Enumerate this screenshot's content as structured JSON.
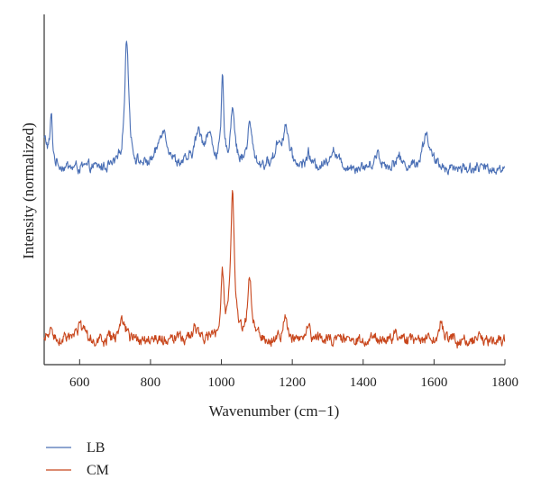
{
  "chart_data": {
    "type": "line",
    "title": "",
    "xlabel": "Wavenumber (cm−1)",
    "ylabel": "Intensity (normalized)",
    "xlim": [
      500,
      1800
    ],
    "ylim": [
      0,
      1
    ],
    "x_ticks": [
      600,
      800,
      1000,
      1200,
      1400,
      1600,
      1800
    ],
    "x_tick_labels": [
      "600",
      "800",
      "1000",
      "1200",
      "1400",
      "1600",
      "1800"
    ],
    "grid": false,
    "legend_position": "bottom-left",
    "series": [
      {
        "name": "LB",
        "color": "#4a6fb5",
        "baseline": 0.56,
        "noise": 0.012,
        "peaks": [
          {
            "x": 500,
            "y": 0.08,
            "w": 12
          },
          {
            "x": 520,
            "y": 0.13,
            "w": 4
          },
          {
            "x": 733,
            "y": 0.37,
            "w": 7
          },
          {
            "x": 835,
            "y": 0.11,
            "w": 16
          },
          {
            "x": 935,
            "y": 0.09,
            "w": 14
          },
          {
            "x": 965,
            "y": 0.08,
            "w": 12
          },
          {
            "x": 1003,
            "y": 0.24,
            "w": 4
          },
          {
            "x": 1032,
            "y": 0.17,
            "w": 7
          },
          {
            "x": 1080,
            "y": 0.12,
            "w": 8
          },
          {
            "x": 1160,
            "y": 0.06,
            "w": 10
          },
          {
            "x": 1182,
            "y": 0.11,
            "w": 10
          },
          {
            "x": 1245,
            "y": 0.04,
            "w": 6
          },
          {
            "x": 1315,
            "y": 0.05,
            "w": 14
          },
          {
            "x": 1440,
            "y": 0.04,
            "w": 10
          },
          {
            "x": 1500,
            "y": 0.03,
            "w": 10
          },
          {
            "x": 1578,
            "y": 0.1,
            "w": 12
          }
        ]
      },
      {
        "name": "CM",
        "color": "#c8461c",
        "baseline": 0.07,
        "noise": 0.013,
        "peaks": [
          {
            "x": 520,
            "y": 0.03,
            "w": 6
          },
          {
            "x": 600,
            "y": 0.04,
            "w": 10
          },
          {
            "x": 720,
            "y": 0.05,
            "w": 10
          },
          {
            "x": 925,
            "y": 0.04,
            "w": 8
          },
          {
            "x": 1003,
            "y": 0.19,
            "w": 4.5
          },
          {
            "x": 1031,
            "y": 0.42,
            "w": 6.5
          },
          {
            "x": 1080,
            "y": 0.17,
            "w": 6
          },
          {
            "x": 1180,
            "y": 0.06,
            "w": 7
          },
          {
            "x": 1245,
            "y": 0.05,
            "w": 5
          },
          {
            "x": 1490,
            "y": 0.02,
            "w": 6
          },
          {
            "x": 1620,
            "y": 0.05,
            "w": 6
          }
        ]
      }
    ]
  }
}
